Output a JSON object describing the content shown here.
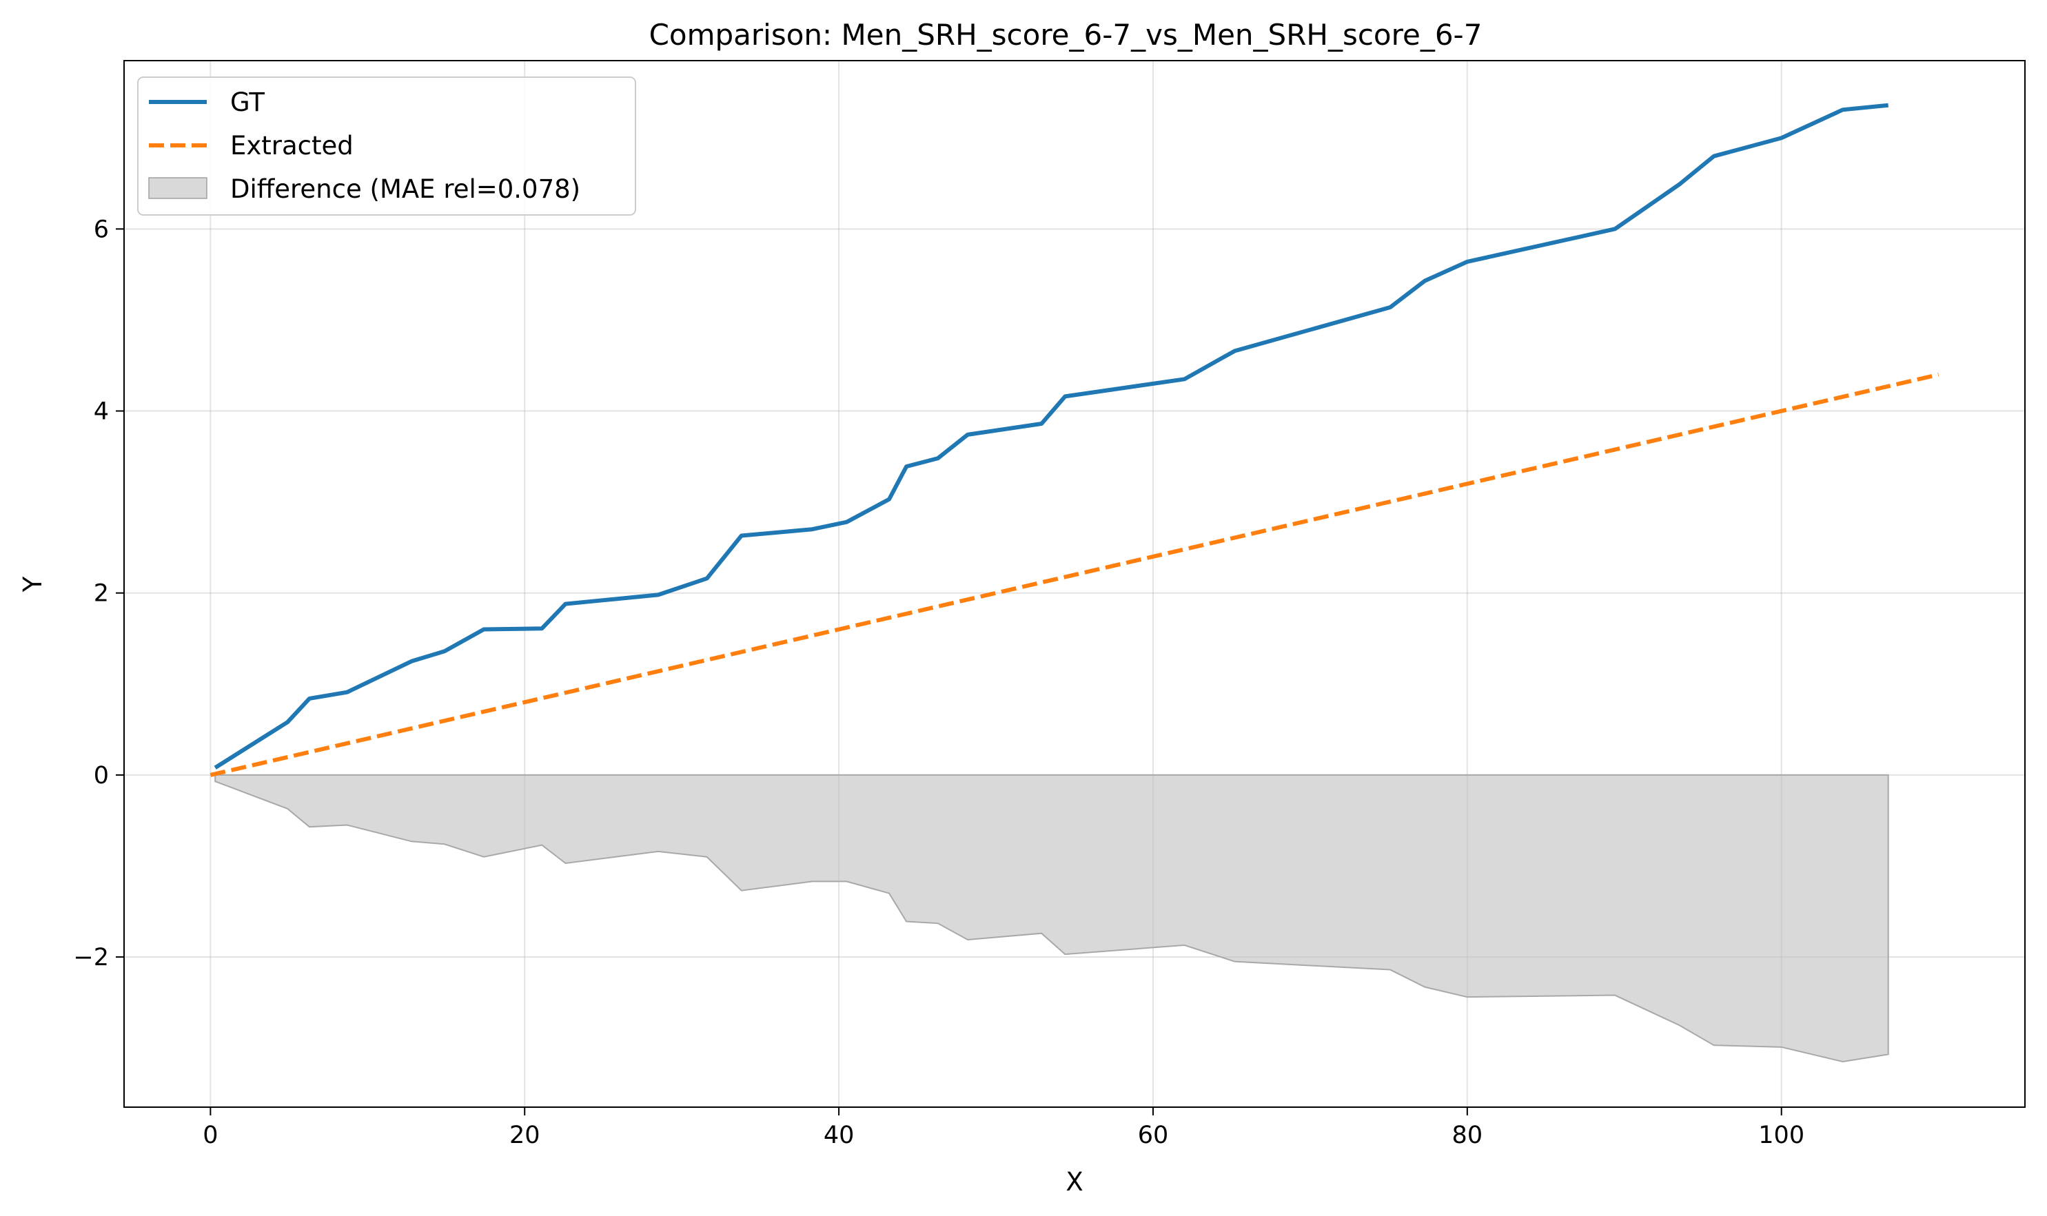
{
  "chart_data": {
    "type": "line",
    "title": "Comparison: Men_SRH_score_6-7_vs_Men_SRH_score_6-7",
    "xlabel": "X",
    "ylabel": "Y",
    "xlim": [
      -5.5,
      115.5
    ],
    "ylim": [
      -3.65,
      7.85
    ],
    "xticks": [
      0,
      20,
      40,
      60,
      80,
      100
    ],
    "yticks": [
      -2,
      0,
      2,
      4,
      6
    ],
    "xtick_labels": [
      "0",
      "20",
      "40",
      "60",
      "80",
      "100"
    ],
    "ytick_labels": [
      "−2",
      "0",
      "2",
      "4",
      "6"
    ],
    "grid": true,
    "legend_position": "top-left",
    "colors": {
      "gt": "#1f77b4",
      "extracted": "#ff7f0e",
      "difference": "#bfbfbf"
    },
    "series": [
      {
        "name": "GT",
        "style": "solid",
        "x": [
          0.3,
          4.9,
          6.3,
          8.7,
          12.8,
          14.9,
          17.4,
          21.1,
          22.6,
          28.5,
          31.6,
          33.8,
          38.3,
          40.5,
          43.2,
          44.3,
          46.3,
          48.2,
          52.9,
          54.4,
          62.0,
          65.2,
          75.1,
          77.3,
          80.0,
          89.4,
          93.5,
          95.7,
          100.0,
          103.9,
          106.8
        ],
        "y": [
          0.08,
          0.58,
          0.84,
          0.91,
          1.25,
          1.36,
          1.6,
          1.61,
          1.88,
          1.98,
          2.16,
          2.63,
          2.7,
          2.78,
          3.03,
          3.39,
          3.48,
          3.74,
          3.86,
          4.16,
          4.35,
          4.66,
          5.14,
          5.43,
          5.64,
          6.0,
          6.49,
          6.8,
          7.0,
          7.31,
          7.36
        ]
      },
      {
        "name": "Extracted",
        "style": "dashed",
        "x": [
          0,
          110
        ],
        "y": [
          0,
          4.4
        ]
      },
      {
        "name": "Difference (MAE rel=0.078)",
        "style": "fill",
        "x": [
          0.3,
          4.9,
          6.3,
          8.7,
          12.8,
          14.9,
          17.4,
          21.1,
          22.6,
          28.5,
          31.6,
          33.8,
          38.3,
          40.5,
          43.2,
          44.3,
          46.3,
          48.2,
          52.9,
          54.4,
          62.0,
          65.2,
          75.1,
          77.3,
          80.0,
          89.4,
          93.5,
          95.7,
          100.0,
          103.9,
          106.8
        ],
        "y": [
          -0.07,
          -0.37,
          -0.57,
          -0.55,
          -0.73,
          -0.76,
          -0.9,
          -0.77,
          -0.97,
          -0.84,
          -0.9,
          -1.27,
          -1.17,
          -1.17,
          -1.3,
          -1.61,
          -1.63,
          -1.81,
          -1.74,
          -1.97,
          -1.87,
          -2.05,
          -2.14,
          -2.33,
          -2.44,
          -2.42,
          -2.75,
          -2.97,
          -2.99,
          -3.15,
          -3.07
        ]
      }
    ]
  }
}
